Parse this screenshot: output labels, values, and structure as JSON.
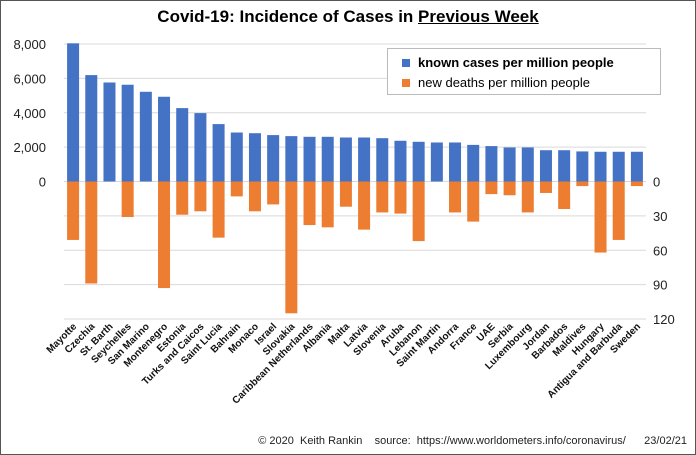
{
  "title": {
    "prefix": "Covid-19: Incidence of Cases in ",
    "underlined": "Previous Week"
  },
  "footer": "© 2020  Keith Rankin    source:  https://www.worldometers.info/coronavirus/      23/02/21",
  "colors": {
    "cases": "#4472C4",
    "deaths": "#ED7D31",
    "grid": "#d9d9d9"
  },
  "chart_data": {
    "type": "bar",
    "categories": [
      "Mayotte",
      "Czechia",
      "St. Barth",
      "Seychelles",
      "San Marino",
      "Montenegro",
      "Estonia",
      "Turks and Caicos",
      "Saint Lucia",
      "Bahrain",
      "Monaco",
      "Israel",
      "Slovakia",
      "Caribbean Netherlands",
      "Albania",
      "Malta",
      "Latvia",
      "Slovenia",
      "Aruba",
      "Lebanon",
      "Saint Martin",
      "Andorra",
      "France",
      "UAE",
      "Serbia",
      "Luxembourg",
      "Jordan",
      "Barbados",
      "Maldives",
      "Hungary",
      "Antigua and Barbuda",
      "Sweden"
    ],
    "series": [
      {
        "name": "known cases per million people",
        "axis": "left",
        "direction": "up",
        "values": [
          8040,
          6190,
          5760,
          5630,
          5220,
          4930,
          4270,
          3980,
          3340,
          2850,
          2810,
          2700,
          2640,
          2600,
          2600,
          2560,
          2560,
          2520,
          2370,
          2310,
          2270,
          2270,
          2130,
          2060,
          1980,
          1980,
          1820,
          1820,
          1750,
          1730,
          1730,
          1730
        ]
      },
      {
        "name": "new deaths per million people",
        "axis": "right",
        "direction": "down",
        "values": [
          51,
          89,
          0,
          31,
          0,
          93,
          29,
          26,
          49,
          13,
          26,
          20,
          115,
          38,
          40,
          22,
          42,
          27,
          28,
          52,
          0,
          27,
          35,
          11,
          12,
          27,
          10,
          24,
          4,
          62,
          51,
          4
        ]
      }
    ],
    "left_axis": {
      "range": [
        0,
        8000
      ],
      "ticks": [
        "0",
        "2,000",
        "4,000",
        "6,000",
        "8,000"
      ]
    },
    "right_axis": {
      "range": [
        0,
        120
      ],
      "ticks": [
        "0",
        "30",
        "60",
        "90",
        "120"
      ],
      "inverted": true
    },
    "grid": true,
    "legend": "top-right"
  }
}
